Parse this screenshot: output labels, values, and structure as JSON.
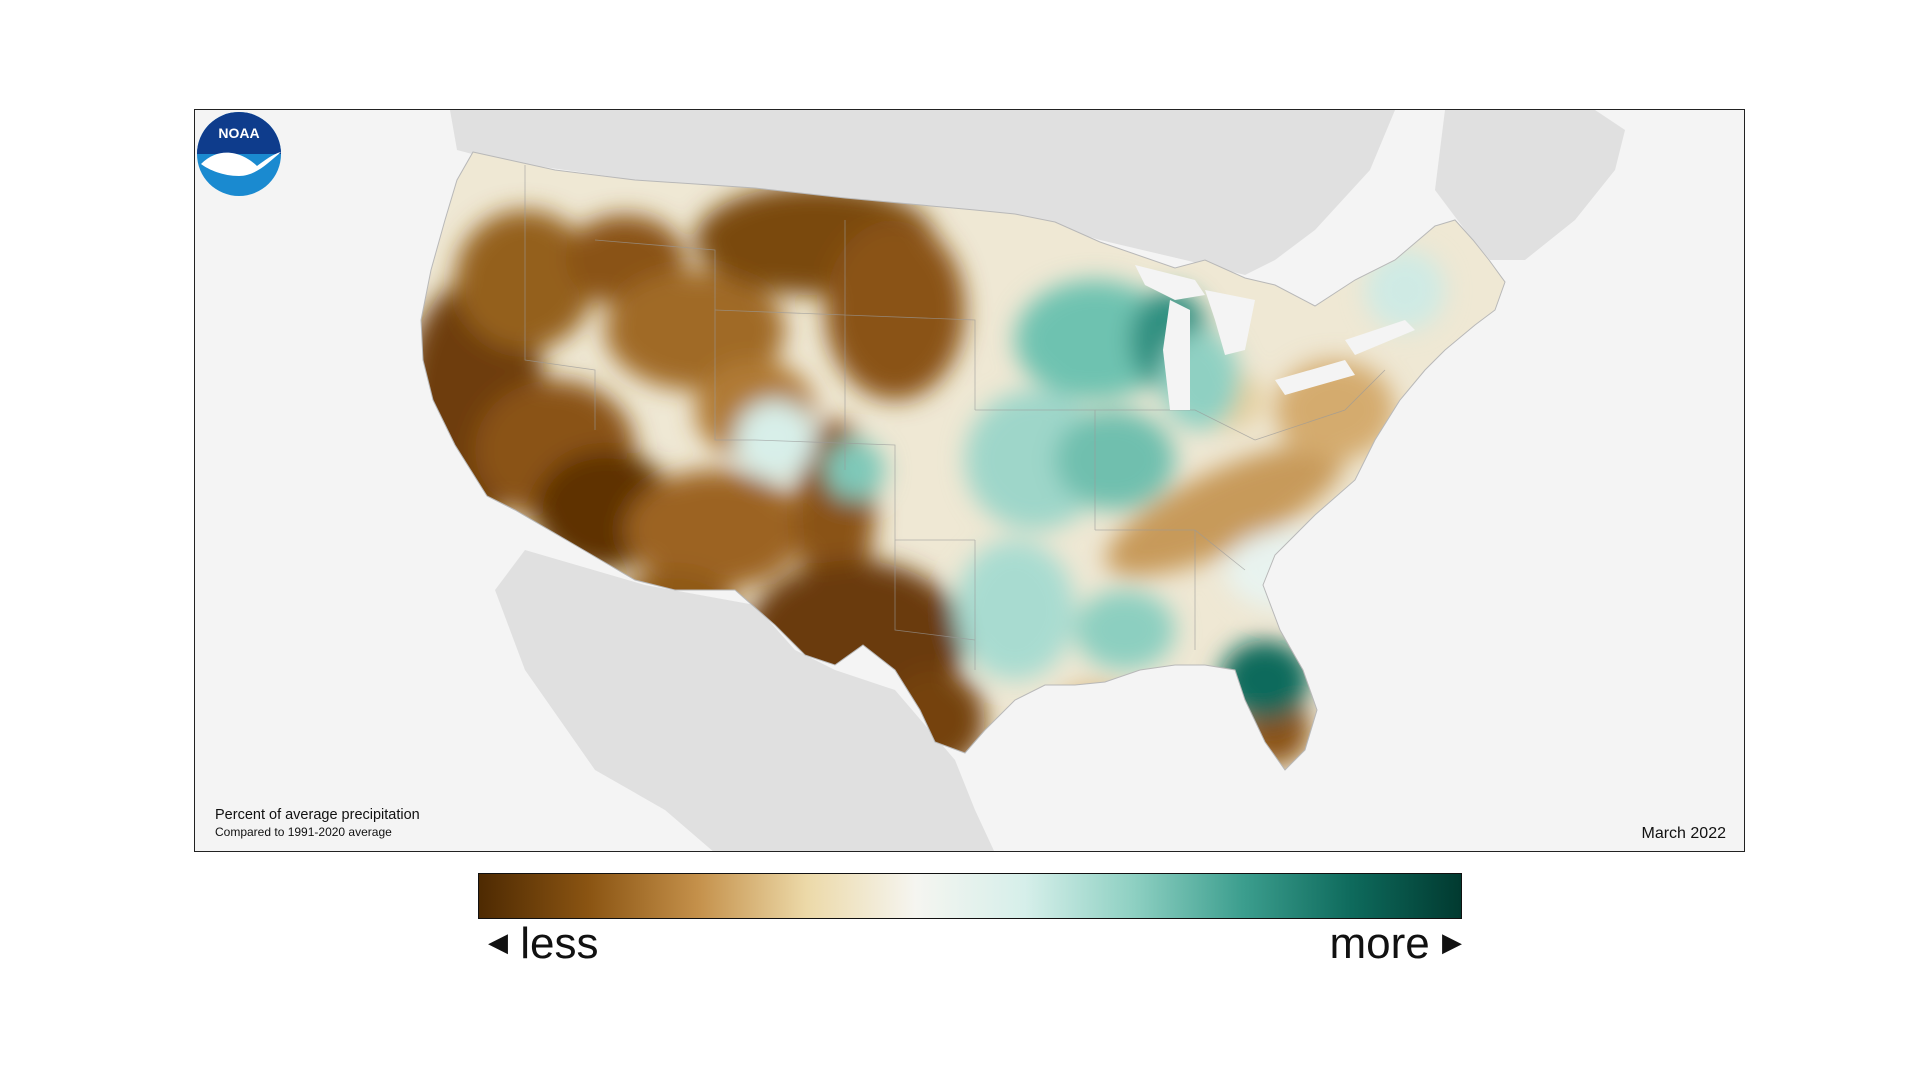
{
  "map": {
    "caption_title": "Percent of average precipitation",
    "caption_subtitle": "Compared to 1991-2020 average",
    "date": "March 2022",
    "logo_text": "NOAA",
    "colors": {
      "background": "#f4f4f4",
      "land_outside": "#e0e0e0",
      "dry_darkest": "#5a3204",
      "dry_mid": "#b87a2a",
      "neutral": "#f4f4ee",
      "wet_mid": "#5fb8a8",
      "wet_darkest": "#013f36"
    },
    "regions": [
      {
        "name": "West Coast / California",
        "anomaly": "less"
      },
      {
        "name": "Desert Southwest",
        "anomaly": "less"
      },
      {
        "name": "Northern Plains",
        "anomaly": "less"
      },
      {
        "name": "Texas",
        "anomaly": "less"
      },
      {
        "name": "Upper Midwest / Great Lakes",
        "anomaly": "more"
      },
      {
        "name": "Mississippi Valley",
        "anomaly": "more"
      },
      {
        "name": "Florida / Southeast",
        "anomaly": "more"
      },
      {
        "name": "Appalachians / Mid-Atlantic",
        "anomaly": "less"
      }
    ]
  },
  "legend": {
    "less_label": "less",
    "more_label": "more",
    "less_arrow": "◀",
    "more_arrow": "▶",
    "gradient": [
      "#4e2a02",
      "#8a5412",
      "#c4904a",
      "#ecd9a8",
      "#f5f5f0",
      "#d6efea",
      "#8ed0c2",
      "#3c9e8e",
      "#0e6a5c",
      "#013a30"
    ]
  }
}
